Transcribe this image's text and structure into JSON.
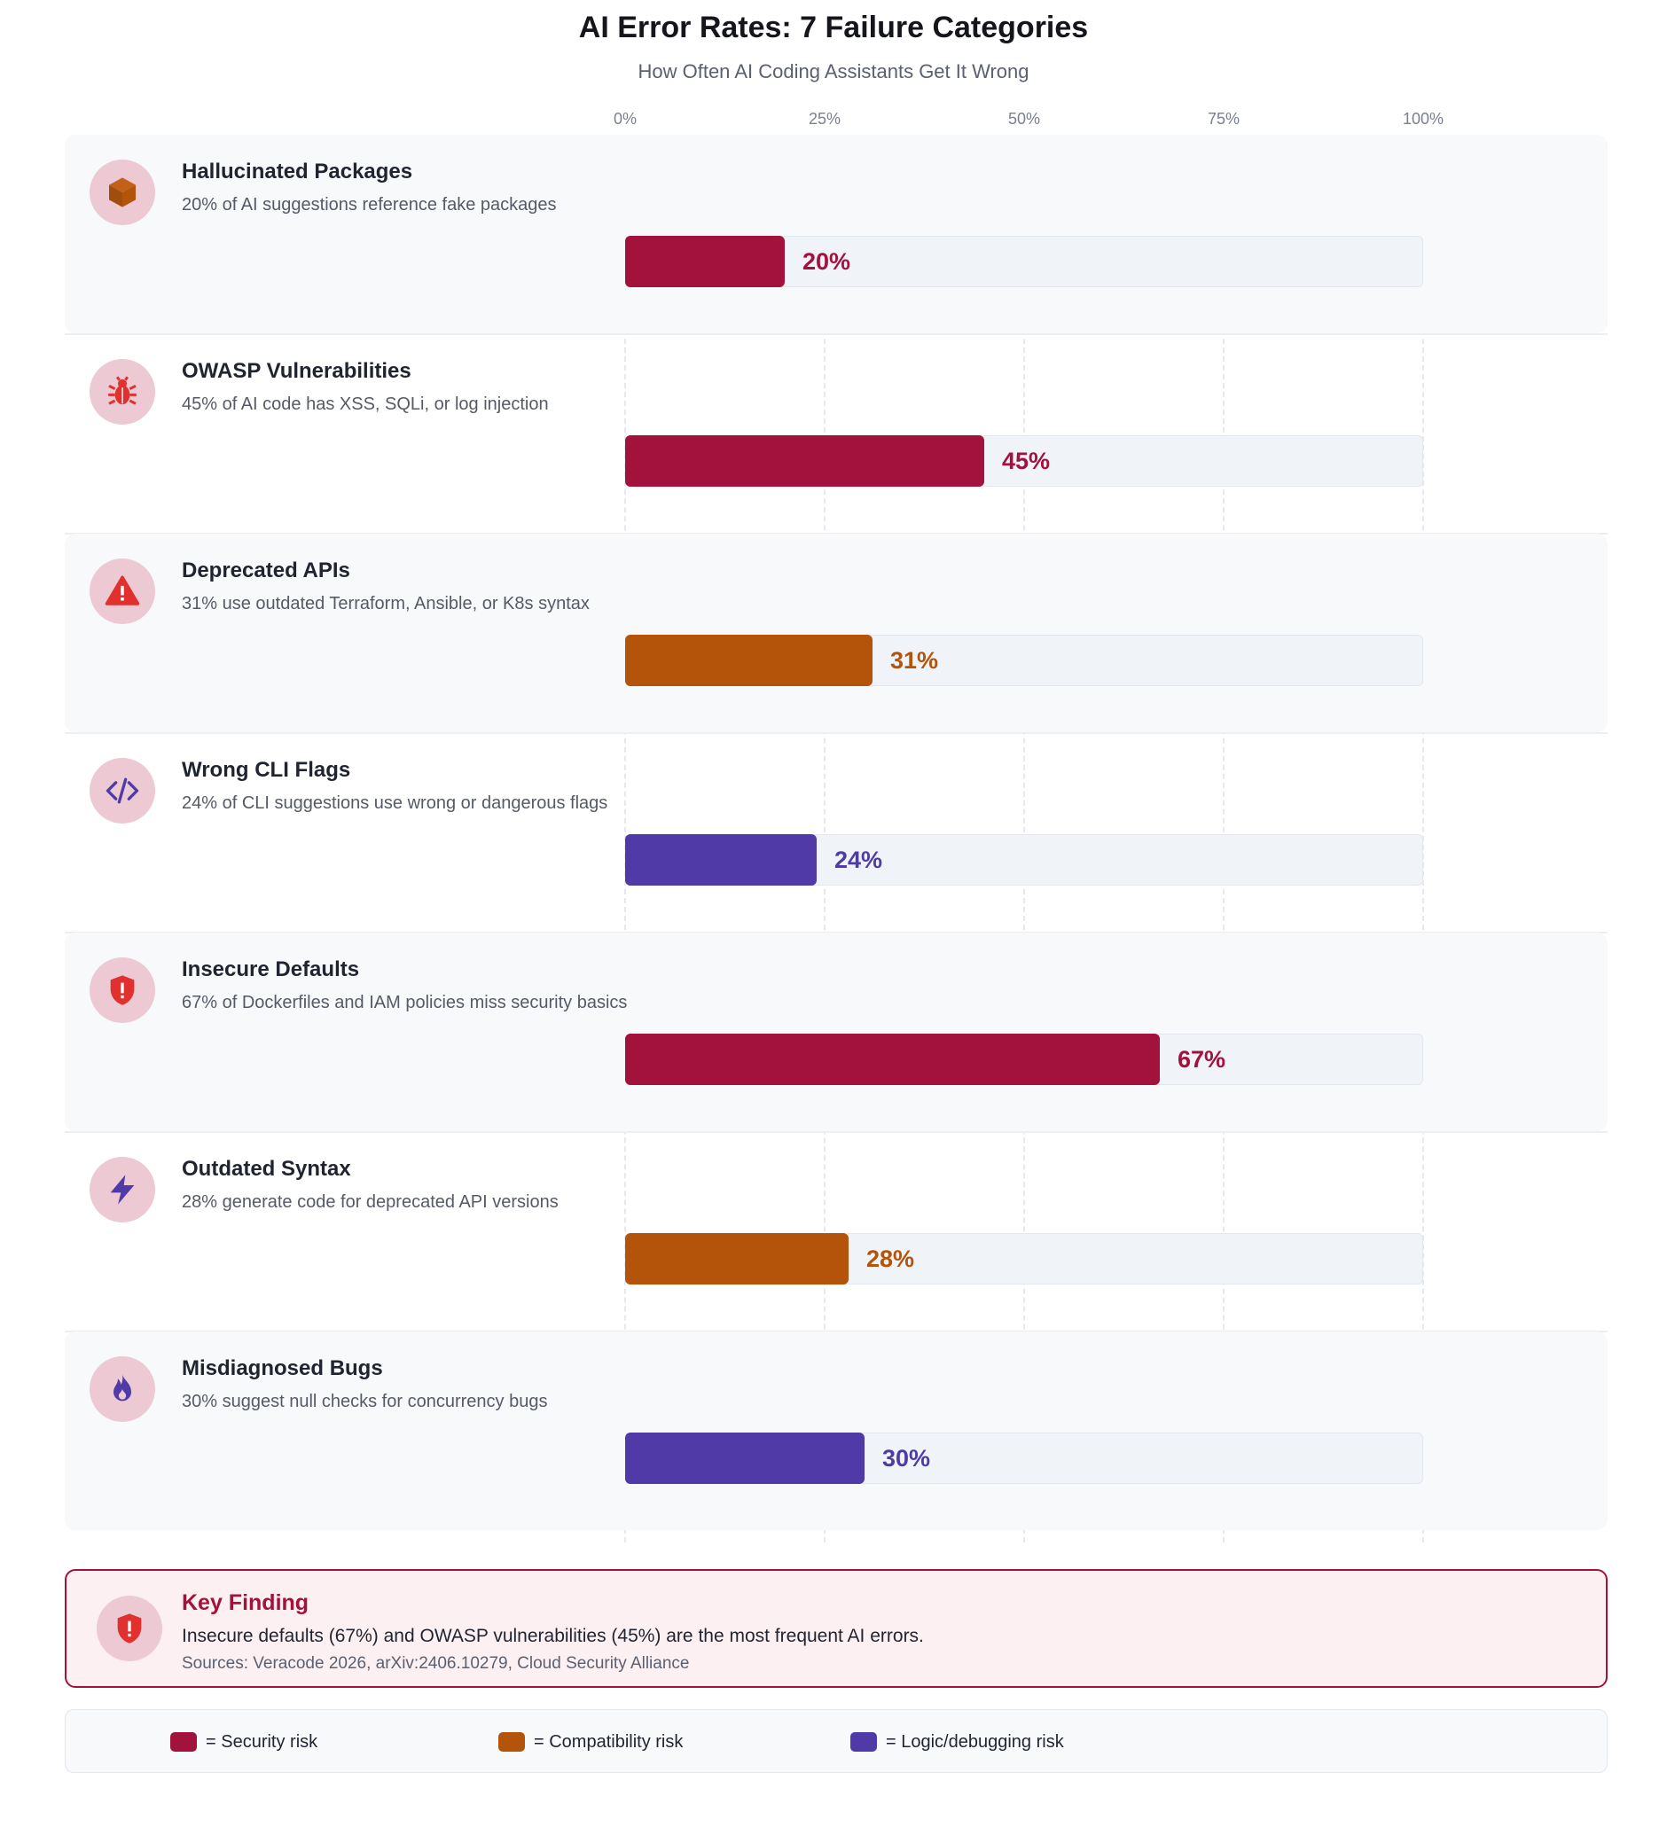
{
  "chart_data": {
    "type": "bar",
    "orientation": "horizontal",
    "title": "AI Error Rates: 7 Failure Categories",
    "subtitle": "How Often AI Coding Assistants Get It Wrong",
    "xlim": [
      0,
      100
    ],
    "x_ticks": [
      "0%",
      "25%",
      "50%",
      "75%",
      "100%"
    ],
    "grid": true,
    "categories": [
      {
        "name": "Hallucinated Packages",
        "description": "20% of AI suggestions reference fake packages",
        "value": 20,
        "label": "20%",
        "risk": "security",
        "icon": "package-icon"
      },
      {
        "name": "OWASP Vulnerabilities",
        "description": "45% of AI code has XSS, SQLi, or log injection",
        "value": 45,
        "label": "45%",
        "risk": "security",
        "icon": "bug-icon"
      },
      {
        "name": "Deprecated APIs",
        "description": "31% use outdated Terraform, Ansible, or K8s syntax",
        "value": 31,
        "label": "31%",
        "risk": "compatibility",
        "icon": "warning-triangle-icon"
      },
      {
        "name": "Wrong CLI Flags",
        "description": "24% of CLI suggestions use wrong or dangerous flags",
        "value": 24,
        "label": "24%",
        "risk": "logic",
        "icon": "code-icon"
      },
      {
        "name": "Insecure Defaults",
        "description": "67% of Dockerfiles and IAM policies miss security basics",
        "value": 67,
        "label": "67%",
        "risk": "security",
        "icon": "shield-alert-icon"
      },
      {
        "name": "Outdated Syntax",
        "description": "28% generate code for deprecated API versions",
        "value": 28,
        "label": "28%",
        "risk": "compatibility",
        "icon": "lightning-icon"
      },
      {
        "name": "Misdiagnosed Bugs",
        "description": "30% suggest null checks for concurrency bugs",
        "value": 30,
        "label": "30%",
        "risk": "logic",
        "icon": "flame-icon"
      }
    ],
    "risk_colors": {
      "security": "#a3123c",
      "compatibility": "#b4530a",
      "logic": "#4f3aa8"
    },
    "legend": [
      {
        "risk": "security",
        "label": "= Security risk"
      },
      {
        "risk": "compatibility",
        "label": "= Compatibility risk"
      },
      {
        "risk": "logic",
        "label": "= Logic/debugging risk"
      }
    ]
  },
  "key_finding": {
    "title": "Key Finding",
    "text": "Insecure defaults (67%) and OWASP vulnerabilities (45%) are the most frequent AI errors.",
    "sources": "Sources: Veracode 2026, arXiv:2406.10279, Cloud Security Alliance",
    "icon": "shield-alert-icon"
  }
}
